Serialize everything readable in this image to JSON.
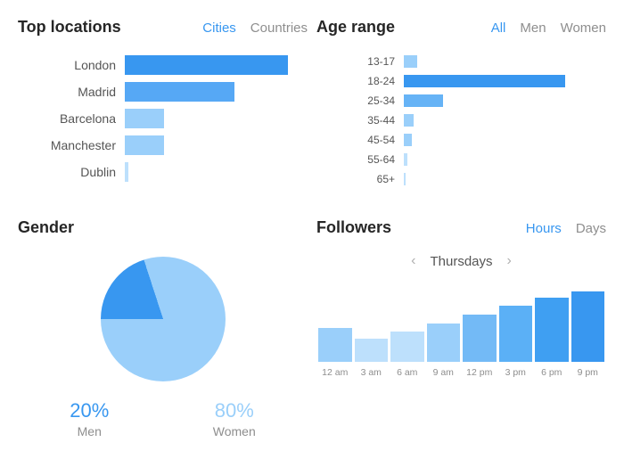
{
  "colors": {
    "primary": "#3897f0",
    "light": "#9acffa",
    "lighter": "#bde0fc",
    "text_muted": "#8e8e8e",
    "text": "#262626"
  },
  "topLocations": {
    "title": "Top locations",
    "tabs": {
      "cities": "Cities",
      "countries": "Countries",
      "active": "cities"
    },
    "max": 100,
    "bars": [
      {
        "label": "London",
        "value": 92,
        "color": "#3897f0"
      },
      {
        "label": "Madrid",
        "value": 62,
        "color": "#56a8f5"
      },
      {
        "label": "Barcelona",
        "value": 22,
        "color": "#9acffa"
      },
      {
        "label": "Manchester",
        "value": 22,
        "color": "#9acffa"
      },
      {
        "label": "Dublin",
        "value": 2,
        "color": "#bde0fc"
      }
    ]
  },
  "ageRange": {
    "title": "Age range",
    "tabs": {
      "all": "All",
      "men": "Men",
      "women": "Women",
      "active": "all"
    },
    "max": 100,
    "bars": [
      {
        "label": "13-17",
        "value": 7,
        "color": "#9acffa"
      },
      {
        "label": "18-24",
        "value": 82,
        "color": "#3897f0"
      },
      {
        "label": "25-34",
        "value": 20,
        "color": "#66b3f6"
      },
      {
        "label": "35-44",
        "value": 5,
        "color": "#9acffa"
      },
      {
        "label": "45-54",
        "value": 4,
        "color": "#9acffa"
      },
      {
        "label": "55-64",
        "value": 2,
        "color": "#bde0fc"
      },
      {
        "label": "65+",
        "value": 1,
        "color": "#bde0fc"
      }
    ]
  },
  "gender": {
    "title": "Gender",
    "men": {
      "pct": 20,
      "label": "Men",
      "display": "20%",
      "color": "#3897f0"
    },
    "women": {
      "pct": 80,
      "label": "Women",
      "display": "80%",
      "color": "#9acffa"
    },
    "startAngle": -90
  },
  "followers": {
    "title": "Followers",
    "tabs": {
      "hours": "Hours",
      "days": "Days",
      "active": "hours"
    },
    "day": "Thursdays",
    "max": 100,
    "bars": [
      {
        "label": "12 am",
        "value": 44,
        "color": "#9acffa"
      },
      {
        "label": "3 am",
        "value": 30,
        "color": "#bde0fc"
      },
      {
        "label": "6 am",
        "value": 39,
        "color": "#bde0fc"
      },
      {
        "label": "9 am",
        "value": 50,
        "color": "#9acffa"
      },
      {
        "label": "12 pm",
        "value": 62,
        "color": "#73baf6"
      },
      {
        "label": "3 pm",
        "value": 73,
        "color": "#5bb0f6"
      },
      {
        "label": "6 pm",
        "value": 84,
        "color": "#3f9ff2"
      },
      {
        "label": "9 pm",
        "value": 92,
        "color": "#3897f0"
      }
    ]
  }
}
